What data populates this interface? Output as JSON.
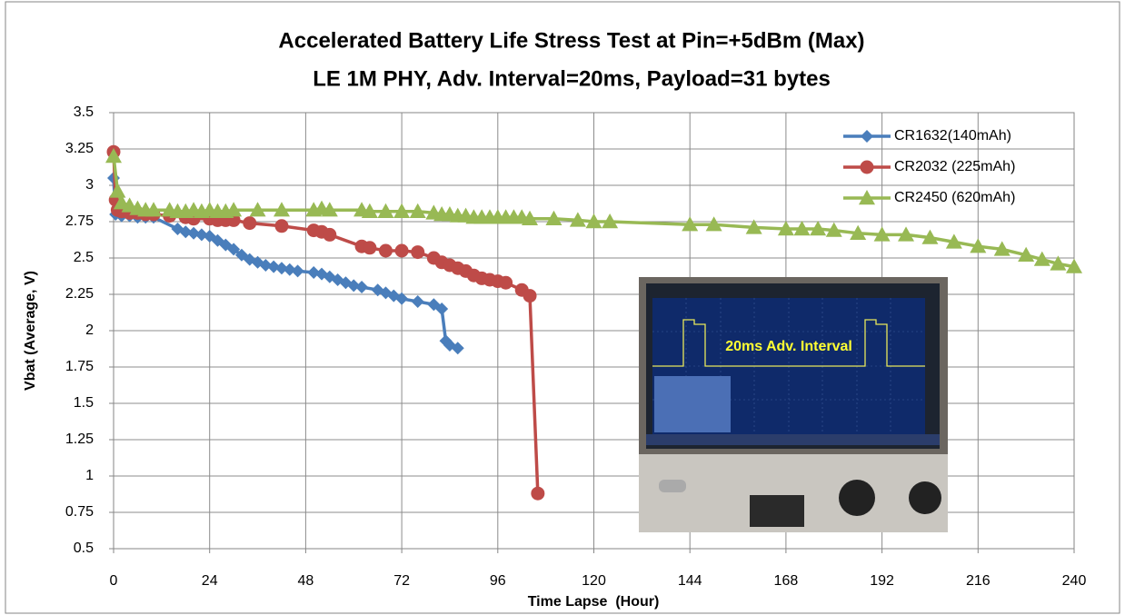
{
  "chart_data": {
    "type": "line",
    "title": "Accelerated Battery Life Stress Test at Pin=+5dBm (Max)",
    "subtitle": "LE 1M PHY, Adv. Interval=20ms, Payload=31 bytes",
    "x_label": "Time Lapse  (Hour)",
    "y_label": "Vbat (Average, V)",
    "annotation": "20ms Adv. Interval",
    "xlim": [
      0,
      240
    ],
    "xticks": [
      0,
      24,
      48,
      72,
      96,
      120,
      144,
      168,
      192,
      216,
      240
    ],
    "ylim": [
      0.5,
      3.5
    ],
    "yticks": [
      0.5,
      0.75,
      1,
      1.25,
      1.5,
      1.75,
      2,
      2.25,
      2.5,
      2.75,
      3,
      3.25,
      3.5
    ],
    "grid": true,
    "legend": "upper right",
    "series": [
      {
        "name": "CR1632(140mAh)",
        "color": "#4a7ebb",
        "marker": "diamond",
        "x": [
          0,
          0.5,
          2,
          4,
          6,
          8,
          10,
          16,
          18,
          20,
          22,
          24,
          26,
          28,
          30,
          32,
          34,
          36,
          38,
          40,
          42,
          44,
          46,
          50,
          52,
          54,
          56,
          58,
          60,
          62,
          66,
          68,
          70,
          72,
          76,
          80,
          82,
          83,
          84,
          86
        ],
        "values": [
          3.05,
          2.8,
          2.79,
          2.79,
          2.78,
          2.78,
          2.78,
          2.7,
          2.68,
          2.67,
          2.66,
          2.65,
          2.62,
          2.59,
          2.56,
          2.52,
          2.49,
          2.47,
          2.45,
          2.44,
          2.43,
          2.42,
          2.41,
          2.4,
          2.39,
          2.37,
          2.35,
          2.33,
          2.31,
          2.3,
          2.28,
          2.26,
          2.24,
          2.22,
          2.2,
          2.18,
          2.15,
          1.93,
          1.9,
          1.88
        ]
      },
      {
        "name": "CR2032 (225mAh)",
        "color": "#be4b48",
        "marker": "circle",
        "x": [
          0,
          0.5,
          1,
          2,
          4,
          6,
          8,
          10,
          14,
          18,
          20,
          24,
          26,
          28,
          30,
          34,
          42,
          50,
          52,
          54,
          62,
          64,
          68,
          72,
          76,
          80,
          82,
          84,
          86,
          88,
          90,
          92,
          94,
          96,
          98,
          102,
          104,
          106
        ],
        "values": [
          3.23,
          2.9,
          2.83,
          2.82,
          2.81,
          2.81,
          2.8,
          2.8,
          2.79,
          2.78,
          2.77,
          2.77,
          2.76,
          2.76,
          2.76,
          2.74,
          2.72,
          2.69,
          2.68,
          2.66,
          2.58,
          2.57,
          2.55,
          2.55,
          2.54,
          2.5,
          2.47,
          2.45,
          2.43,
          2.41,
          2.38,
          2.36,
          2.35,
          2.34,
          2.33,
          2.28,
          2.24,
          0.88
        ]
      },
      {
        "name": "CR2450 (620mAh)",
        "color": "#98b954",
        "marker": "triangle",
        "x": [
          0,
          1,
          2,
          4,
          6,
          8,
          10,
          14,
          16,
          18,
          20,
          22,
          24,
          26,
          28,
          30,
          36,
          42,
          50,
          52,
          54,
          62,
          64,
          68,
          72,
          76,
          80,
          82,
          84,
          86,
          88,
          90,
          92,
          94,
          96,
          98,
          100,
          102,
          104,
          110,
          116,
          120,
          124,
          144,
          150,
          160,
          168,
          172,
          176,
          180,
          186,
          192,
          198,
          204,
          210,
          216,
          222,
          228,
          232,
          236,
          240
        ],
        "values": [
          3.2,
          2.96,
          2.88,
          2.86,
          2.84,
          2.83,
          2.83,
          2.83,
          2.82,
          2.82,
          2.83,
          2.82,
          2.83,
          2.82,
          2.82,
          2.83,
          2.83,
          2.83,
          2.83,
          2.84,
          2.83,
          2.83,
          2.82,
          2.82,
          2.82,
          2.82,
          2.81,
          2.8,
          2.8,
          2.79,
          2.79,
          2.78,
          2.78,
          2.78,
          2.78,
          2.78,
          2.78,
          2.78,
          2.77,
          2.77,
          2.76,
          2.75,
          2.75,
          2.73,
          2.73,
          2.71,
          2.7,
          2.7,
          2.7,
          2.69,
          2.67,
          2.66,
          2.66,
          2.64,
          2.61,
          2.58,
          2.56,
          2.52,
          2.49,
          2.46,
          2.44
        ]
      }
    ]
  }
}
